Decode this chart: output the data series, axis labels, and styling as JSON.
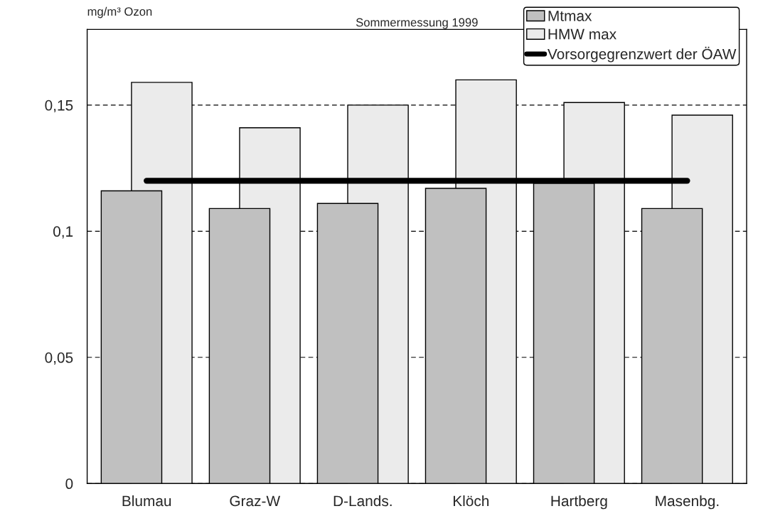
{
  "chart_data": {
    "type": "bar",
    "title": "Sommermessung 1999",
    "ylabel": "mg/m³ Ozon",
    "categories": [
      "Blumau",
      "Graz-W",
      "D-Lands.",
      "Klöch",
      "Hartberg",
      "Masenbg."
    ],
    "series": [
      {
        "name": "Mtmax",
        "color": "#c0c0c0",
        "values": [
          0.116,
          0.109,
          0.111,
          0.117,
          0.119,
          0.109
        ]
      },
      {
        "name": "HMW max",
        "color": "#ebebeb",
        "values": [
          0.159,
          0.141,
          0.15,
          0.16,
          0.151,
          0.146
        ]
      },
      {
        "name": "Vorsorgegrenzwert der ÖAW",
        "type": "line",
        "color": "#000000",
        "values": [
          0.12,
          0.12,
          0.12,
          0.12,
          0.12,
          0.12
        ]
      }
    ],
    "ylim": [
      0,
      0.18
    ],
    "yticks": [
      0,
      {
        "value": 0.05,
        "label": "0,05"
      },
      {
        "value": 0.1,
        "label": "0,1"
      },
      {
        "value": 0.15,
        "label": "0,15"
      }
    ],
    "grid": "y",
    "legend": "top right"
  }
}
